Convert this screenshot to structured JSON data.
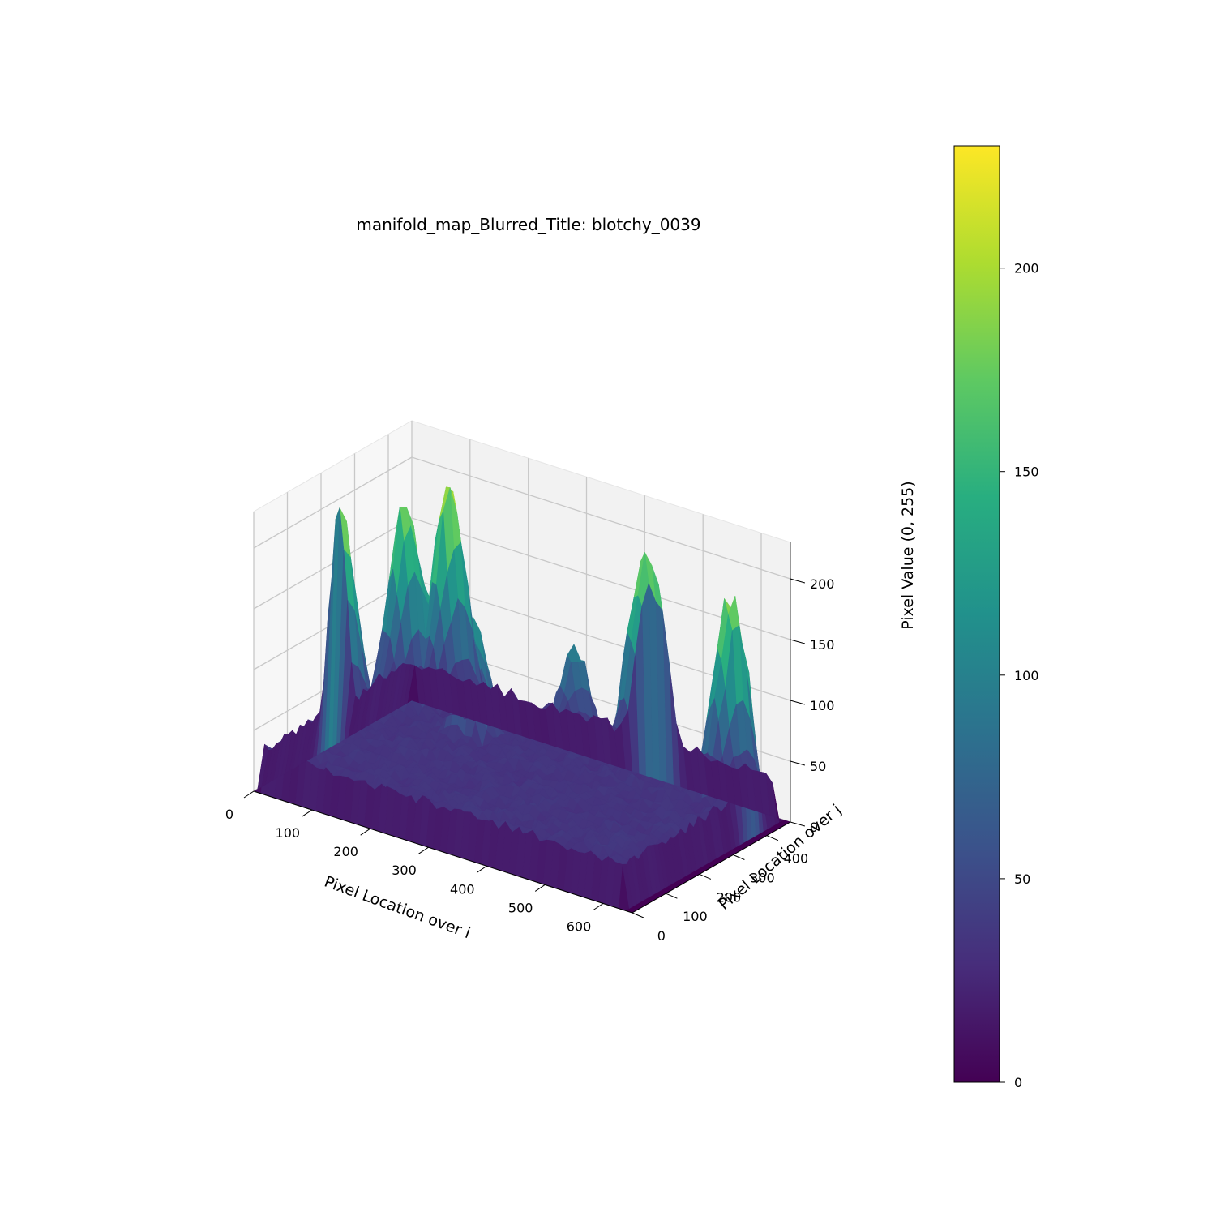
{
  "chart_data": {
    "type": "surface3d",
    "title": "manifold_map_Blurred_Title: blotchy_0039",
    "xlabel": "Pixel Location over i",
    "ylabel": "Pixel Location over j",
    "zlabel": "Pixel Value (0, 255)",
    "xlim": [
      0,
      650
    ],
    "ylim": [
      0,
      470
    ],
    "zlim": [
      0,
      230
    ],
    "x_ticks": [
      0,
      100,
      200,
      300,
      400,
      500,
      600
    ],
    "y_ticks": [
      0,
      100,
      200,
      300,
      400
    ],
    "z_ticks": [
      0,
      50,
      100,
      150,
      200
    ],
    "colormap": "viridis",
    "colorbar": {
      "min": 0,
      "max": 230,
      "ticks": [
        0,
        50,
        100,
        150,
        200
      ]
    },
    "grid": true,
    "features": [
      {
        "i": 110,
        "j": 390,
        "height": 225
      },
      {
        "i": 60,
        "j": 350,
        "height": 210
      },
      {
        "i": 15,
        "j": 230,
        "height": 205
      },
      {
        "i": 600,
        "j": 380,
        "height": 215
      },
      {
        "i": 420,
        "j": 440,
        "height": 220
      },
      {
        "i": 200,
        "j": 300,
        "height": 140
      },
      {
        "i": 320,
        "j": 400,
        "height": 110
      }
    ],
    "base_level": 35
  }
}
